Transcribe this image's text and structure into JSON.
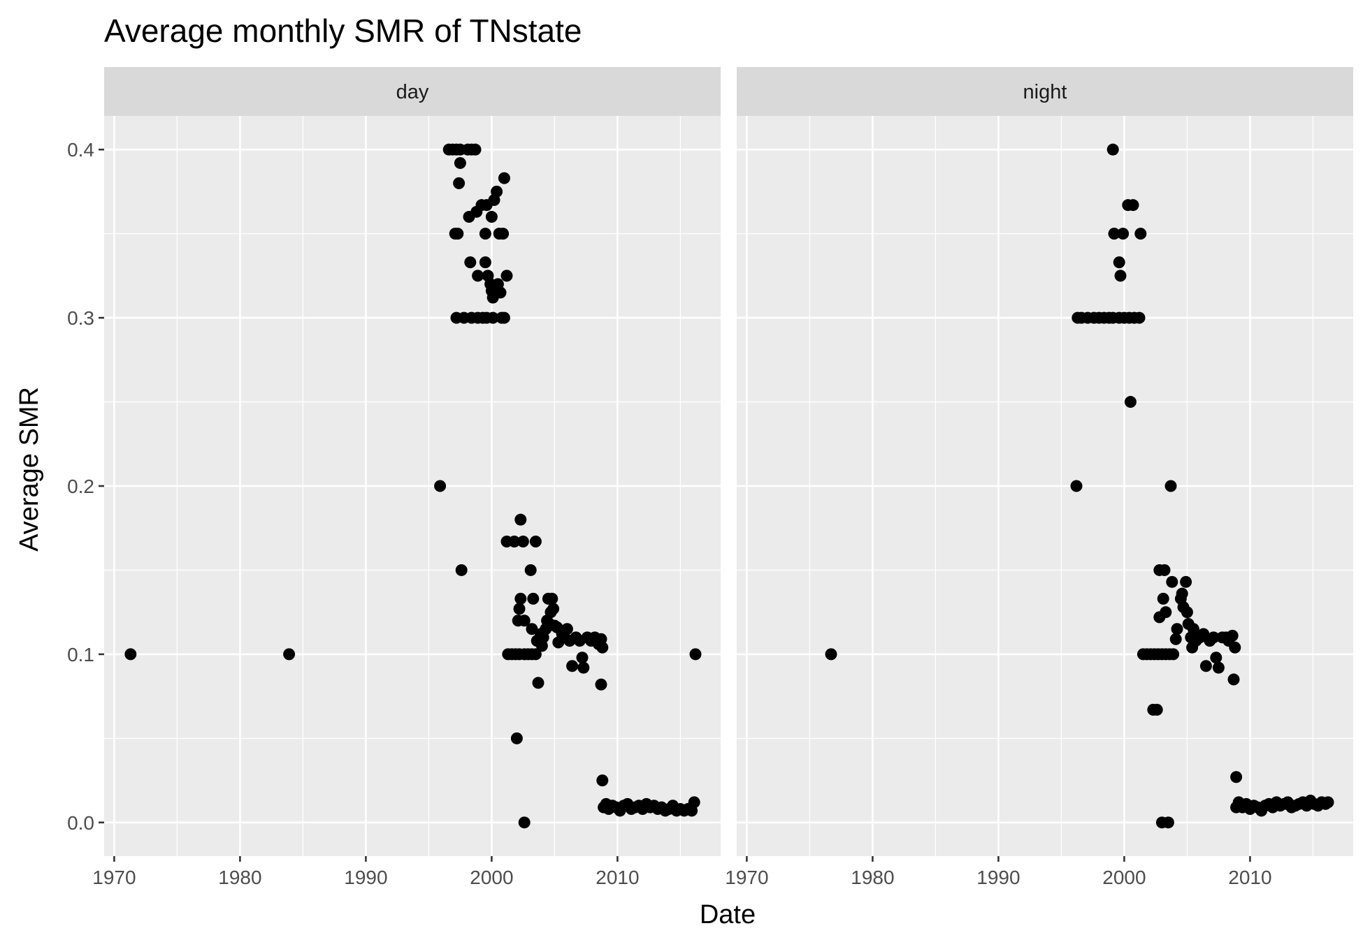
{
  "chart_data": {
    "type": "scatter",
    "title": "Average monthly SMR of TNstate",
    "xlabel": "Date",
    "ylabel": "Average SMR",
    "xlim": [
      1969.2,
      2018.2
    ],
    "ylim": [
      -0.02,
      0.42
    ],
    "x_ticks": [
      1970,
      1980,
      1990,
      2000,
      2010
    ],
    "x_tick_labels": [
      "1970",
      "1980",
      "1990",
      "2000",
      "2010"
    ],
    "y_ticks": [
      0.0,
      0.1,
      0.2,
      0.3,
      0.4
    ],
    "y_tick_labels": [
      "0.0",
      "0.1",
      "0.2",
      "0.3",
      "0.4"
    ],
    "grid": true,
    "point_color": "#000000",
    "panel_background": "#ebebeb",
    "strip_background": "#d9d9d9",
    "facets": [
      {
        "label": "day",
        "points": [
          [
            1971.3,
            0.1
          ],
          [
            1983.9,
            0.1
          ],
          [
            1995.9,
            0.2
          ],
          [
            1996.6,
            0.4
          ],
          [
            1996.9,
            0.4
          ],
          [
            1997.2,
            0.4
          ],
          [
            1997.5,
            0.4
          ],
          [
            1998.1,
            0.4
          ],
          [
            1998.4,
            0.4
          ],
          [
            1998.7,
            0.4
          ],
          [
            1997.5,
            0.392
          ],
          [
            1997.4,
            0.38
          ],
          [
            1997.1,
            0.35
          ],
          [
            1997.3,
            0.35
          ],
          [
            1998.2,
            0.36
          ],
          [
            1998.8,
            0.363
          ],
          [
            1999.2,
            0.367
          ],
          [
            1999.6,
            0.367
          ],
          [
            1999.5,
            0.35
          ],
          [
            2000.2,
            0.37
          ],
          [
            2000.4,
            0.375
          ],
          [
            2000.6,
            0.35
          ],
          [
            2000.9,
            0.35
          ],
          [
            2000.0,
            0.36
          ],
          [
            1998.3,
            0.333
          ],
          [
            1999.5,
            0.333
          ],
          [
            1998.9,
            0.325
          ],
          [
            1999.7,
            0.325
          ],
          [
            1999.9,
            0.32
          ],
          [
            2000.0,
            0.316
          ],
          [
            2000.1,
            0.312
          ],
          [
            2000.3,
            0.318
          ],
          [
            2000.5,
            0.32
          ],
          [
            2000.7,
            0.315
          ],
          [
            2001.0,
            0.383
          ],
          [
            2001.2,
            0.325
          ],
          [
            1997.2,
            0.3
          ],
          [
            1997.8,
            0.3
          ],
          [
            1998.4,
            0.3
          ],
          [
            1998.9,
            0.3
          ],
          [
            1999.3,
            0.3
          ],
          [
            1999.6,
            0.3
          ],
          [
            2000.1,
            0.3
          ],
          [
            2000.8,
            0.3
          ],
          [
            2001.0,
            0.3
          ],
          [
            1997.6,
            0.15
          ],
          [
            2001.2,
            0.167
          ],
          [
            2001.8,
            0.167
          ],
          [
            2002.5,
            0.167
          ],
          [
            2002.3,
            0.18
          ],
          [
            2003.5,
            0.167
          ],
          [
            2003.1,
            0.15
          ],
          [
            2002.0,
            0.05
          ],
          [
            2002.6,
            0.0
          ],
          [
            2001.3,
            0.1
          ],
          [
            2001.6,
            0.1
          ],
          [
            2001.9,
            0.1
          ],
          [
            2002.2,
            0.1
          ],
          [
            2002.6,
            0.1
          ],
          [
            2002.9,
            0.1
          ],
          [
            2003.2,
            0.1
          ],
          [
            2003.5,
            0.1
          ],
          [
            2002.1,
            0.12
          ],
          [
            2002.2,
            0.127
          ],
          [
            2002.3,
            0.133
          ],
          [
            2002.6,
            0.12
          ],
          [
            2003.2,
            0.115
          ],
          [
            2003.3,
            0.133
          ],
          [
            2003.6,
            0.108
          ],
          [
            2003.7,
            0.083
          ],
          [
            2003.9,
            0.112
          ],
          [
            2004.0,
            0.105
          ],
          [
            2004.1,
            0.11
          ],
          [
            2004.3,
            0.115
          ],
          [
            2004.4,
            0.12
          ],
          [
            2004.5,
            0.133
          ],
          [
            2004.6,
            0.118
          ],
          [
            2004.7,
            0.125
          ],
          [
            2004.8,
            0.133
          ],
          [
            2004.9,
            0.127
          ],
          [
            2005.0,
            0.117
          ],
          [
            2005.2,
            0.116
          ],
          [
            2005.3,
            0.107
          ],
          [
            2005.6,
            0.112
          ],
          [
            2005.8,
            0.11
          ],
          [
            2006.0,
            0.115
          ],
          [
            2006.2,
            0.108
          ],
          [
            2006.4,
            0.093
          ],
          [
            2006.7,
            0.11
          ],
          [
            2007.0,
            0.108
          ],
          [
            2007.2,
            0.098
          ],
          [
            2007.3,
            0.092
          ],
          [
            2007.6,
            0.11
          ],
          [
            2007.9,
            0.108
          ],
          [
            2008.2,
            0.11
          ],
          [
            2008.5,
            0.106
          ],
          [
            2008.7,
            0.109
          ],
          [
            2008.8,
            0.104
          ],
          [
            2008.7,
            0.082
          ],
          [
            2008.8,
            0.025
          ],
          [
            2008.9,
            0.009
          ],
          [
            2009.1,
            0.011
          ],
          [
            2009.3,
            0.008
          ],
          [
            2009.6,
            0.01
          ],
          [
            2009.9,
            0.009
          ],
          [
            2010.2,
            0.007
          ],
          [
            2010.5,
            0.01
          ],
          [
            2010.8,
            0.011
          ],
          [
            2011.1,
            0.008
          ],
          [
            2011.4,
            0.009
          ],
          [
            2011.7,
            0.01
          ],
          [
            2012.0,
            0.008
          ],
          [
            2012.3,
            0.011
          ],
          [
            2012.6,
            0.009
          ],
          [
            2012.9,
            0.01
          ],
          [
            2013.2,
            0.008
          ],
          [
            2013.5,
            0.009
          ],
          [
            2013.8,
            0.007
          ],
          [
            2014.1,
            0.008
          ],
          [
            2014.4,
            0.01
          ],
          [
            2014.7,
            0.007
          ],
          [
            2015.0,
            0.008
          ],
          [
            2015.3,
            0.007
          ],
          [
            2015.6,
            0.008
          ],
          [
            2015.9,
            0.007
          ],
          [
            2016.1,
            0.012
          ],
          [
            2016.2,
            0.1
          ]
        ]
      },
      {
        "label": "night",
        "points": [
          [
            1976.7,
            0.1
          ],
          [
            1996.2,
            0.2
          ],
          [
            1996.3,
            0.3
          ],
          [
            1996.6,
            0.3
          ],
          [
            1997.1,
            0.3
          ],
          [
            1997.6,
            0.3
          ],
          [
            1998.0,
            0.3
          ],
          [
            1998.4,
            0.3
          ],
          [
            1998.8,
            0.3
          ],
          [
            1999.1,
            0.3
          ],
          [
            1999.6,
            0.3
          ],
          [
            2000.0,
            0.3
          ],
          [
            2000.4,
            0.3
          ],
          [
            2000.8,
            0.3
          ],
          [
            2001.2,
            0.3
          ],
          [
            1999.1,
            0.4
          ],
          [
            1999.2,
            0.35
          ],
          [
            1999.9,
            0.35
          ],
          [
            2000.3,
            0.367
          ],
          [
            2000.7,
            0.367
          ],
          [
            2001.3,
            0.35
          ],
          [
            1999.6,
            0.333
          ],
          [
            1999.7,
            0.325
          ],
          [
            2000.5,
            0.25
          ],
          [
            2003.7,
            0.2
          ],
          [
            2002.8,
            0.15
          ],
          [
            2003.2,
            0.15
          ],
          [
            2003.1,
            0.133
          ],
          [
            2002.8,
            0.122
          ],
          [
            2003.3,
            0.125
          ],
          [
            2003.8,
            0.143
          ],
          [
            2004.2,
            0.115
          ],
          [
            2004.5,
            0.133
          ],
          [
            2004.6,
            0.136
          ],
          [
            2004.7,
            0.128
          ],
          [
            2004.9,
            0.143
          ],
          [
            2005.0,
            0.125
          ],
          [
            2005.1,
            0.118
          ],
          [
            2005.3,
            0.11
          ],
          [
            2005.5,
            0.115
          ],
          [
            2005.7,
            0.108
          ],
          [
            2006.0,
            0.11
          ],
          [
            2006.3,
            0.112
          ],
          [
            2006.5,
            0.093
          ],
          [
            2006.8,
            0.108
          ],
          [
            2007.1,
            0.11
          ],
          [
            2007.3,
            0.098
          ],
          [
            2007.5,
            0.092
          ],
          [
            2007.8,
            0.11
          ],
          [
            2008.1,
            0.11
          ],
          [
            2008.3,
            0.108
          ],
          [
            2008.6,
            0.111
          ],
          [
            2008.8,
            0.104
          ],
          [
            2008.7,
            0.085
          ],
          [
            2004.1,
            0.109
          ],
          [
            2005.4,
            0.104
          ],
          [
            2001.5,
            0.1
          ],
          [
            2001.8,
            0.1
          ],
          [
            2002.1,
            0.1
          ],
          [
            2002.4,
            0.1
          ],
          [
            2002.7,
            0.1
          ],
          [
            2003.0,
            0.1
          ],
          [
            2003.3,
            0.1
          ],
          [
            2003.6,
            0.1
          ],
          [
            2003.9,
            0.1
          ],
          [
            2002.3,
            0.067
          ],
          [
            2002.6,
            0.067
          ],
          [
            2003.0,
            0.0
          ],
          [
            2003.5,
            0.0
          ],
          [
            2008.9,
            0.027
          ],
          [
            2008.9,
            0.009
          ],
          [
            2009.1,
            0.012
          ],
          [
            2009.4,
            0.009
          ],
          [
            2009.7,
            0.011
          ],
          [
            2010.0,
            0.008
          ],
          [
            2010.3,
            0.01
          ],
          [
            2010.6,
            0.009
          ],
          [
            2010.9,
            0.007
          ],
          [
            2011.2,
            0.01
          ],
          [
            2011.5,
            0.011
          ],
          [
            2011.8,
            0.009
          ],
          [
            2012.1,
            0.012
          ],
          [
            2012.4,
            0.01
          ],
          [
            2012.7,
            0.011
          ],
          [
            2013.0,
            0.012
          ],
          [
            2013.3,
            0.009
          ],
          [
            2013.6,
            0.01
          ],
          [
            2013.9,
            0.011
          ],
          [
            2014.2,
            0.012
          ],
          [
            2014.5,
            0.01
          ],
          [
            2014.8,
            0.013
          ],
          [
            2015.1,
            0.011
          ],
          [
            2015.4,
            0.01
          ],
          [
            2015.7,
            0.012
          ],
          [
            2016.0,
            0.011
          ],
          [
            2016.2,
            0.012
          ]
        ]
      }
    ]
  }
}
